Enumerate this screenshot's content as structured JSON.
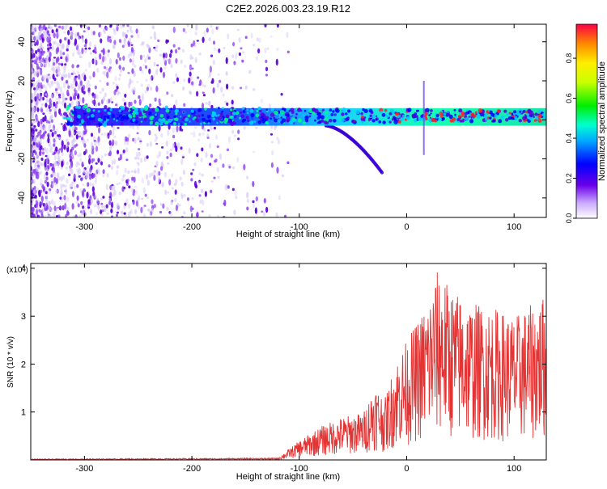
{
  "title": "C2E2.2026.003.23.19.R12",
  "colors": {
    "snr_line": "#e33333",
    "grid": "#dddddd",
    "spec_dim": "#d3c4f5",
    "spec_mid": "#8a3cf0",
    "spec_strong": "#5a00d8"
  },
  "chart_data": [
    {
      "type": "heatmap",
      "title": "C2E2.2026.003.23.19.R12",
      "xlabel": "Height of straight line (km)",
      "ylabel": "Frequency (Hz)",
      "xlim": [
        -350,
        130
      ],
      "ylim": [
        -50,
        49
      ],
      "x_ticks": [
        -300,
        -200,
        -100,
        0,
        100
      ],
      "x_tick_labels": [
        "-300",
        "-200",
        "-100",
        "0",
        "100"
      ],
      "y_ticks": [
        -40,
        -20,
        0,
        20,
        40
      ],
      "y_tick_labels": [
        "-40",
        "-20",
        "0",
        "20",
        "40"
      ],
      "ridge_frequency_hz": 2,
      "colorbar": {
        "label": "Normalized spectral amplitude",
        "range": [
          0,
          0.97
        ],
        "ticks": [
          0,
          0.2,
          0.4,
          0.6,
          0.8
        ],
        "tick_labels": [
          "0.0",
          "0.2",
          "0.4",
          "0.6",
          "0.8"
        ]
      }
    },
    {
      "type": "line",
      "xlabel": "Height of straight line (km)",
      "ylabel": "SNR (10 * v/v)",
      "y_scale_note": "(x10",
      "y_scale_exp": "4",
      "xlim": [
        -350,
        130
      ],
      "ylim": [
        0,
        4.1
      ],
      "x_ticks": [
        -300,
        -200,
        -100,
        0,
        100
      ],
      "x_tick_labels": [
        "-300",
        "-200",
        "-100",
        "0",
        "100"
      ],
      "y_ticks": [
        1,
        2,
        3,
        4
      ],
      "y_tick_labels": [
        "1",
        "2",
        "3",
        "4"
      ],
      "envelope": {
        "x": [
          -350,
          -120,
          -100,
          -80,
          -60,
          -40,
          -30,
          -20,
          -10,
          0,
          10,
          20,
          30,
          40,
          60,
          80,
          100,
          130
        ],
        "y": [
          0.02,
          0.04,
          0.4,
          0.7,
          0.9,
          1.0,
          1.6,
          1.3,
          2.1,
          2.5,
          2.9,
          3.4,
          4.05,
          3.6,
          3.3,
          3.2,
          3.0,
          3.45
        ]
      }
    }
  ]
}
